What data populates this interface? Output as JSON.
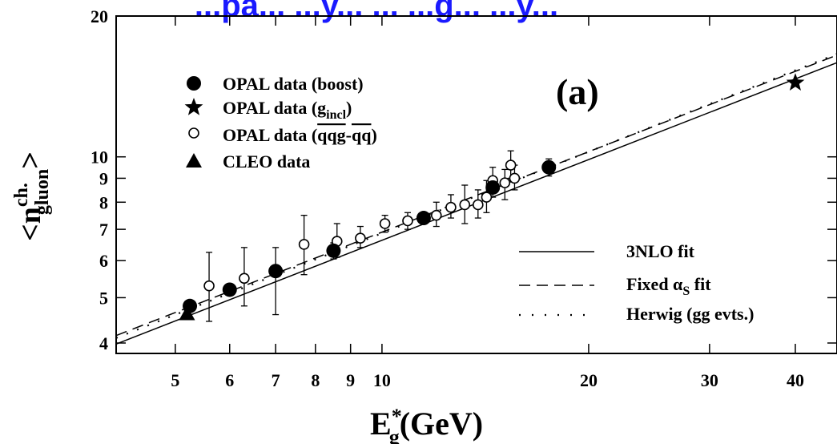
{
  "banner_text": "...pa... ...y... ... ...g... ...y...",
  "chart_data": {
    "type": "scatter",
    "panel_label": "(a)",
    "xlabel": {
      "main": "E",
      "sup": "*",
      "sub": "g",
      "rest": "(GeV)"
    },
    "ylabel": {
      "lt": "<",
      "n": "n",
      "sup": "ch.",
      "sub": "gluon",
      "gt": ">"
    },
    "x_scale": "log",
    "y_scale": "log",
    "xlim": [
      4.1,
      46
    ],
    "ylim": [
      3.8,
      20
    ],
    "x_ticks": [
      {
        "value": 5,
        "label": "5"
      },
      {
        "value": 6,
        "label": "6"
      },
      {
        "value": 7,
        "label": "7"
      },
      {
        "value": 8,
        "label": "8"
      },
      {
        "value": 9,
        "label": "9"
      },
      {
        "value": 10,
        "label": "10"
      },
      {
        "value": 20,
        "label": "20"
      },
      {
        "value": 30,
        "label": "30"
      },
      {
        "value": 40,
        "label": "40"
      }
    ],
    "y_ticks": [
      {
        "value": 4,
        "label": "4"
      },
      {
        "value": 5,
        "label": "5"
      },
      {
        "value": 6,
        "label": "6"
      },
      {
        "value": 7,
        "label": "7"
      },
      {
        "value": 8,
        "label": "8"
      },
      {
        "value": 9,
        "label": "9"
      },
      {
        "value": 10,
        "label": "10"
      },
      {
        "value": 20,
        "label": "20"
      }
    ],
    "series": [
      {
        "name": "OPAL data (boost)",
        "marker": "filled-circle",
        "points": [
          {
            "x": 5.25,
            "y": 4.8,
            "yerr": [
              0.1,
              0.1
            ]
          },
          {
            "x": 6.0,
            "y": 5.2,
            "yerr": [
              0.1,
              0.1
            ]
          },
          {
            "x": 7.0,
            "y": 5.7,
            "yerr": [
              1.1,
              0.7
            ]
          },
          {
            "x": 8.5,
            "y": 6.3,
            "yerr": [
              0.25,
              0.25
            ]
          },
          {
            "x": 11.5,
            "y": 7.4,
            "yerr": [
              0.15,
              0.15
            ]
          },
          {
            "x": 14.5,
            "y": 8.6,
            "yerr": [
              0.2,
              0.2
            ]
          },
          {
            "x": 17.5,
            "y": 9.5,
            "yerr": [
              0.4,
              0.4
            ]
          }
        ]
      },
      {
        "name": "OPAL data (g_incl)",
        "marker": "filled-star",
        "points": [
          {
            "x": 40.0,
            "y": 14.4,
            "yerr": [
              0.2,
              0.2
            ]
          }
        ]
      },
      {
        "name": "OPAL data (qqg-qq)",
        "marker": "open-circle",
        "points": [
          {
            "x": 5.6,
            "y": 5.3,
            "yerr": [
              0.85,
              0.95
            ]
          },
          {
            "x": 6.3,
            "y": 5.5,
            "yerr": [
              0.7,
              0.9
            ]
          },
          {
            "x": 7.7,
            "y": 6.5,
            "yerr": [
              0.9,
              1.0
            ]
          },
          {
            "x": 8.6,
            "y": 6.6,
            "yerr": [
              0.5,
              0.6
            ]
          },
          {
            "x": 9.3,
            "y": 6.7,
            "yerr": [
              0.3,
              0.4
            ]
          },
          {
            "x": 10.1,
            "y": 7.2,
            "yerr": [
              0.3,
              0.3
            ]
          },
          {
            "x": 10.9,
            "y": 7.3,
            "yerr": [
              0.3,
              0.3
            ]
          },
          {
            "x": 12.0,
            "y": 7.5,
            "yerr": [
              0.4,
              0.5
            ]
          },
          {
            "x": 12.6,
            "y": 7.8,
            "yerr": [
              0.4,
              0.5
            ]
          },
          {
            "x": 13.2,
            "y": 7.9,
            "yerr": [
              0.7,
              0.8
            ]
          },
          {
            "x": 13.8,
            "y": 7.9,
            "yerr": [
              0.5,
              0.6
            ]
          },
          {
            "x": 14.2,
            "y": 8.2,
            "yerr": [
              0.6,
              0.7
            ]
          },
          {
            "x": 14.5,
            "y": 8.9,
            "yerr": [
              0.7,
              0.6
            ]
          },
          {
            "x": 15.1,
            "y": 8.8,
            "yerr": [
              0.7,
              0.6
            ]
          },
          {
            "x": 15.4,
            "y": 9.6,
            "yerr": [
              0.6,
              0.7
            ]
          },
          {
            "x": 15.6,
            "y": 9.0,
            "yerr": [
              0.5,
              0.6
            ]
          }
        ]
      },
      {
        "name": "CLEO data",
        "marker": "filled-triangle",
        "points": [
          {
            "x": 5.2,
            "y": 4.62,
            "yerr": [
              0.08,
              0.08
            ]
          }
        ]
      }
    ],
    "fits": [
      {
        "name": "3NLO fit",
        "style": "solid",
        "x": [
          4.1,
          46
        ],
        "y": [
          3.98,
          15.9
        ]
      },
      {
        "name": "Fixed αS fit",
        "style": "dashed",
        "x": [
          4.1,
          46
        ],
        "y": [
          4.15,
          16.5
        ]
      },
      {
        "name": "Herwig (gg evts.)",
        "style": "dotted",
        "x": [
          4.1,
          46
        ],
        "y": [
          4.1,
          16.6
        ]
      }
    ],
    "legend_top": [
      {
        "label": "OPAL data (boost)",
        "marker": "filled-circle"
      },
      {
        "label": "OPAL data (g",
        "sub": "incl",
        "after": ")",
        "marker": "filled-star"
      },
      {
        "label": "OPAL data (",
        "overline": "qqg",
        "mid": "-",
        "overline2": "qq",
        "after": ")",
        "marker": "open-circle"
      },
      {
        "label": "CLEO data",
        "marker": "filled-triangle"
      }
    ],
    "legend_bottom": [
      {
        "label": "3NLO fit",
        "style": "solid"
      },
      {
        "label": "Fixed α",
        "sub": "S",
        "after": " fit",
        "style": "dashed"
      },
      {
        "label": "Herwig (gg evts.)",
        "style": "dotted"
      }
    ]
  }
}
